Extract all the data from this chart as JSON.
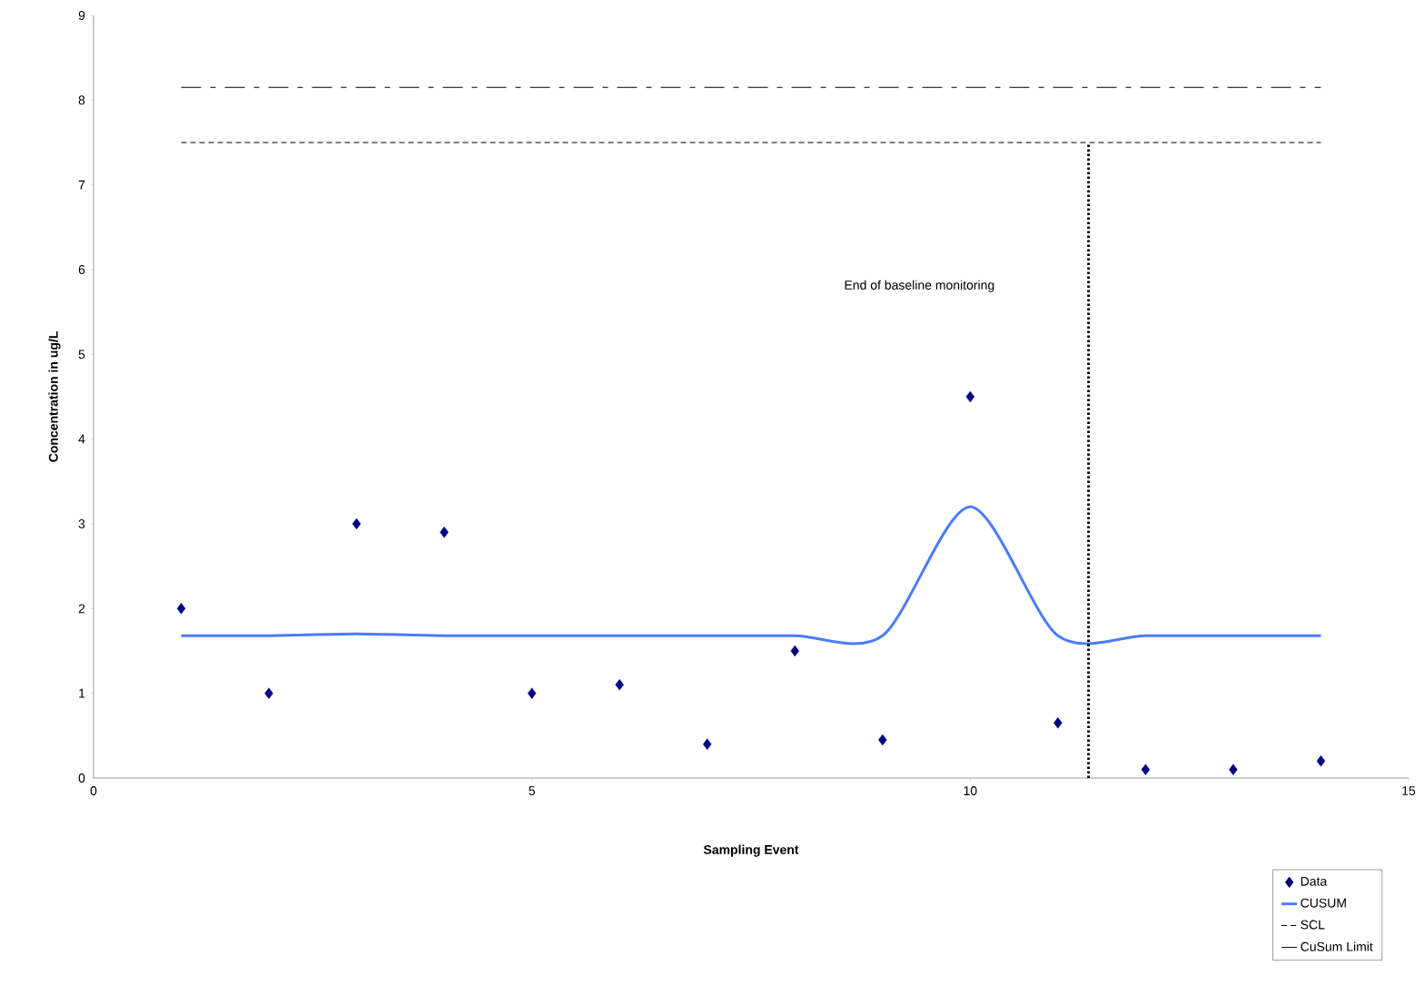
{
  "chart_data": {
    "type": "scatter",
    "xlabel": "Sampling Event",
    "ylabel": "Concentration in ug/L",
    "xlim": [
      0,
      15
    ],
    "xticks": [
      0,
      5,
      10,
      15
    ],
    "ylim": [
      0,
      9
    ],
    "yticks": [
      0,
      1,
      2,
      3,
      4,
      5,
      6,
      7,
      8,
      9
    ],
    "grid": false,
    "legend": "bottom right",
    "series": [
      {
        "name": "Data",
        "marker": "diamond",
        "color": "#000080",
        "x": [
          1,
          2,
          3,
          4,
          5,
          6,
          7,
          8,
          9,
          10,
          11,
          12,
          13,
          14
        ],
        "values": [
          2,
          1,
          3,
          2.9,
          1,
          1.1,
          0.4,
          1.5,
          0.45,
          4.5,
          0.65,
          0.1,
          0.1,
          0.2
        ]
      },
      {
        "name": "CUSUM",
        "type": "line",
        "color": "#4a7bff",
        "line_style": "solid",
        "x": [
          1,
          2,
          3,
          4,
          5,
          6,
          7,
          8,
          9,
          10,
          11,
          12,
          13,
          14
        ],
        "values": [
          1.68,
          1.68,
          1.7,
          1.68,
          1.68,
          1.68,
          1.68,
          1.68,
          1.68,
          3.2,
          1.68,
          1.68,
          1.68,
          1.68
        ]
      },
      {
        "name": "SCL",
        "type": "line",
        "color": "#000000",
        "line_style": "dashed",
        "x": [
          1,
          14
        ],
        "values": [
          7.5,
          7.5
        ]
      },
      {
        "name": "CuSum Limit",
        "type": "line",
        "color": "#000000",
        "line_style": "dashdot",
        "x": [
          1,
          14
        ],
        "values": [
          8.15,
          8.15
        ]
      },
      {
        "type": "line",
        "color": "#000000",
        "line_style": "dotted",
        "x": [
          11.35,
          11.35
        ],
        "values": [
          0,
          7.5
        ]
      }
    ],
    "annotations": [
      "End of baseline monitoring"
    ]
  }
}
